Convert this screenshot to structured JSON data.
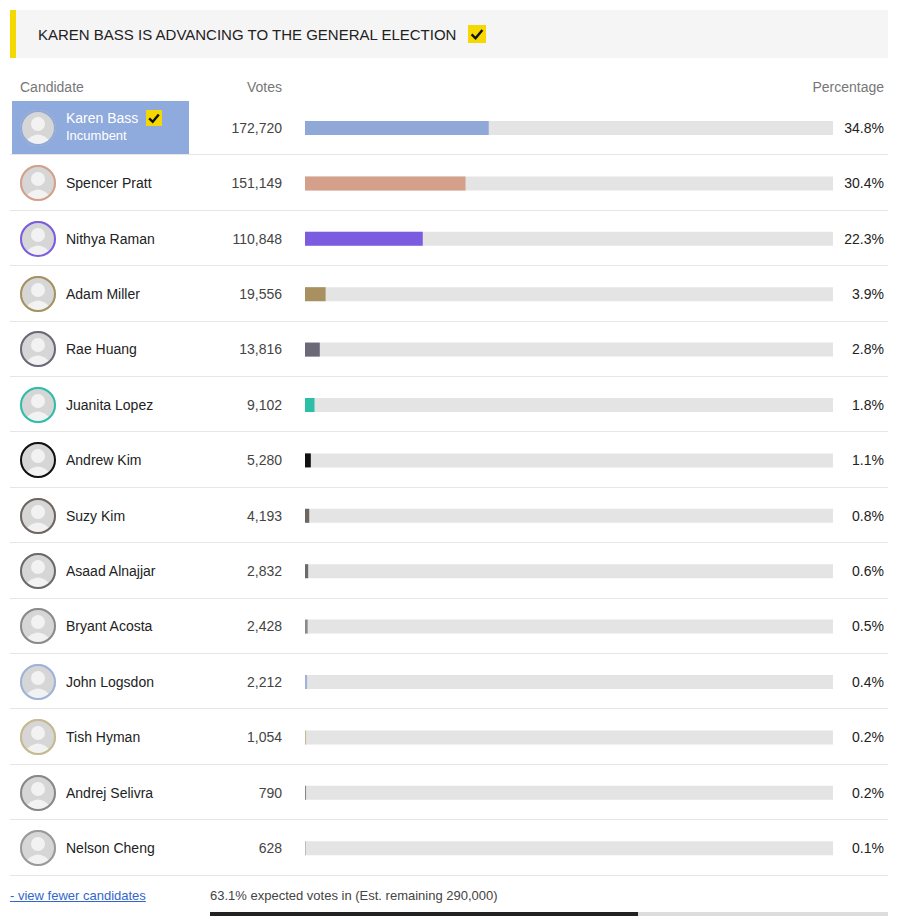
{
  "chart_data": {
    "type": "bar",
    "orientation": "horizontal",
    "title": "KAREN BASS IS ADVANCING TO THE GENERAL ELECTION",
    "column_headers": [
      "Candidate",
      "Votes",
      "Percentage"
    ],
    "categories": [
      "Karen Bass",
      "Spencer Pratt",
      "Nithya Raman",
      "Adam Miller",
      "Rae Huang",
      "Juanita Lopez",
      "Andrew Kim",
      "Suzy Kim",
      "Asaad Alnajjar",
      "Bryant Acosta",
      "John Logsdon",
      "Tish Hyman",
      "Andrej Selivra",
      "Nelson Cheng"
    ],
    "values": [
      34.8,
      30.4,
      22.3,
      3.9,
      2.8,
      1.8,
      1.1,
      0.8,
      0.6,
      0.5,
      0.4,
      0.2,
      0.2,
      0.1
    ],
    "value_labels": [
      "34.8%",
      "30.4%",
      "22.3%",
      "3.9%",
      "2.8%",
      "1.8%",
      "1.1%",
      "0.8%",
      "0.6%",
      "0.5%",
      "0.4%",
      "0.2%",
      "0.2%",
      "0.1%"
    ],
    "votes": [
      172720,
      151149,
      110848,
      19556,
      13816,
      9102,
      5280,
      4193,
      2832,
      2428,
      2212,
      1054,
      790,
      628
    ],
    "colors": [
      "#8FA8D8",
      "#D4A08A",
      "#7B5BE0",
      "#A89060",
      "#6B6878",
      "#2BBFA8",
      "#111111",
      "#6E6460",
      "#6A6A6A",
      "#8A8A8A",
      "#9DB3D8",
      "#C8B890",
      "#888888",
      "#999999"
    ],
    "xlim": [
      0,
      100
    ],
    "tick_labels": false,
    "data_labels": true,
    "incumbent": {
      "name": "Karen Bass",
      "label": "Incumbent"
    },
    "winner": "Karen Bass",
    "footer": {
      "link": "- view fewer candidates",
      "status": "63.1% expected votes in (Est. remaining 290,000)",
      "expected_votes_in": 63.1
    }
  }
}
